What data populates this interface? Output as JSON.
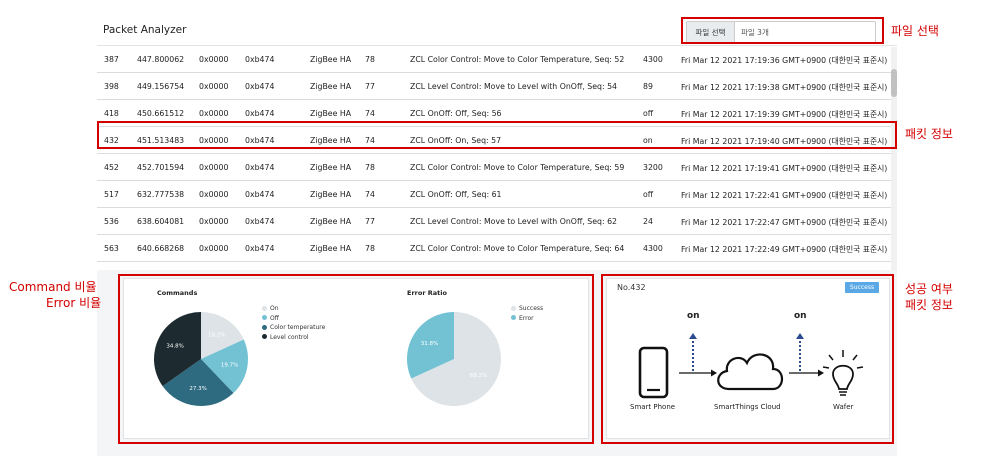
{
  "app": {
    "title": "Packet Analyzer"
  },
  "file": {
    "button_label": "파일 선택",
    "selected": "파일 3개"
  },
  "packets": [
    [
      "387",
      "447.800062",
      "0x0000",
      "0xb474",
      "ZigBee HA",
      "78",
      "ZCL Color Control: Move to Color Temperature, Seq: 52",
      "4300",
      "Fri Mar 12 2021 17:19:36 GMT+0900 (대한민국 표준시)"
    ],
    [
      "398",
      "449.156754",
      "0x0000",
      "0xb474",
      "ZigBee HA",
      "77",
      "ZCL Level Control: Move to Level with OnOff, Seq: 54",
      "89",
      "Fri Mar 12 2021 17:19:38 GMT+0900 (대한민국 표준시)"
    ],
    [
      "418",
      "450.661512",
      "0x0000",
      "0xb474",
      "ZigBee HA",
      "74",
      "ZCL OnOff: Off, Seq: 56",
      "off",
      "Fri Mar 12 2021 17:19:39 GMT+0900 (대한민국 표준시)"
    ],
    [
      "432",
      "451.513483",
      "0x0000",
      "0xb474",
      "ZigBee HA",
      "74",
      "ZCL OnOff: On, Seq: 57",
      "on",
      "Fri Mar 12 2021 17:19:40 GMT+0900 (대한민국 표준시)"
    ],
    [
      "452",
      "452.701594",
      "0x0000",
      "0xb474",
      "ZigBee HA",
      "78",
      "ZCL Color Control: Move to Color Temperature, Seq: 59",
      "3200",
      "Fri Mar 12 2021 17:19:41 GMT+0900 (대한민국 표준시)"
    ],
    [
      "517",
      "632.777538",
      "0x0000",
      "0xb474",
      "ZigBee HA",
      "74",
      "ZCL OnOff: Off, Seq: 61",
      "off",
      "Fri Mar 12 2021 17:22:41 GMT+0900 (대한민국 표준시)"
    ],
    [
      "536",
      "638.604081",
      "0x0000",
      "0xb474",
      "ZigBee HA",
      "77",
      "ZCL Level Control: Move to Level with OnOff, Seq: 62",
      "24",
      "Fri Mar 12 2021 17:22:47 GMT+0900 (대한민국 표준시)"
    ],
    [
      "563",
      "640.668268",
      "0x0000",
      "0xb474",
      "ZigBee HA",
      "78",
      "ZCL Color Control: Move to Color Temperature, Seq: 64",
      "4300",
      "Fri Mar 12 2021 17:22:49 GMT+0900 (대한민국 표준시)"
    ]
  ],
  "chart_data": [
    {
      "type": "pie",
      "title": "Commands",
      "categories": [
        "On",
        "Off",
        "Color temperature",
        "Level control"
      ],
      "values": [
        18.2,
        19.7,
        27.3,
        34.8
      ],
      "value_labels": [
        "18.2%",
        "19.7%",
        "27.3%",
        "34.8%"
      ],
      "colors": [
        "#dde3e6",
        "#72c2d3",
        "#2e6b80",
        "#1d2a30"
      ],
      "legend": "right"
    },
    {
      "type": "pie",
      "title": "Error Ratio",
      "categories": [
        "Success",
        "Error"
      ],
      "values": [
        68.2,
        31.8
      ],
      "value_labels": [
        "68.2%",
        "31.8%"
      ],
      "colors": [
        "#dde3e6",
        "#72c2d3"
      ],
      "legend": "right"
    }
  ],
  "status": {
    "packet_no": "No.432",
    "badge": "Success",
    "badge_color": "#5aa9e6",
    "on_left": "on",
    "on_right": "on",
    "devices": [
      {
        "name": "Smart Phone",
        "icon": "smartphone-icon"
      },
      {
        "name": "SmartThings Cloud",
        "icon": "cloud-icon"
      },
      {
        "name": "Wafer",
        "icon": "lightbulb-icon"
      }
    ]
  },
  "annotations": {
    "file_select": "파일 선택",
    "packet_info": "패킷 정보",
    "ratio_line1": "Command 비율",
    "ratio_line2": "Error 비율",
    "status_line1": "성공 여부",
    "status_line2": "패킷 정보",
    "color": "#d40000"
  }
}
